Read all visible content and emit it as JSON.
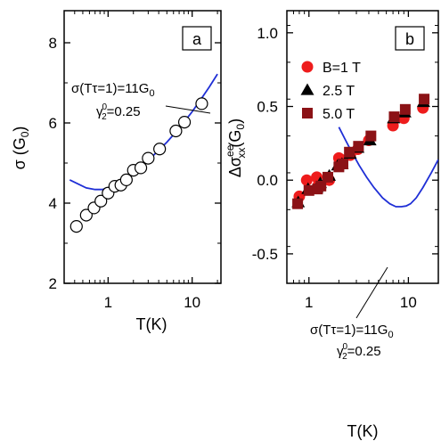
{
  "chart_data": [
    {
      "panel": "a",
      "type": "scatter",
      "xscale": "log",
      "xlim": [
        0.3,
        22
      ],
      "ylim": [
        2,
        8.8
      ],
      "xlabel": "T(K)",
      "ylabel": "σ (G0)",
      "ylabel_parts": {
        "main": "σ (G",
        "sub": "0",
        "close": ")"
      },
      "x_ticks": [
        1,
        10
      ],
      "x_tick_labels": [
        "1",
        "10"
      ],
      "y_ticks": [
        2,
        4,
        6,
        8
      ],
      "y_tick_labels": [
        "2",
        "4",
        "6",
        "8"
      ],
      "panel_label": "a",
      "annotation": {
        "line1": {
          "main": "σ(Tτ=1)=11G",
          "sub": "0"
        },
        "line2": {
          "pre": "γ",
          "sup": "0",
          "sub": "2",
          "post": "=0.25"
        }
      },
      "series": [
        {
          "marker": "open-circle",
          "x": [
            0.42,
            0.55,
            0.68,
            0.82,
            1.0,
            1.2,
            1.42,
            1.65,
            2.0,
            2.45,
            3.0,
            4.1,
            6.4,
            8.1,
            13.0
          ],
          "y": [
            3.42,
            3.7,
            3.88,
            4.05,
            4.25,
            4.42,
            4.45,
            4.58,
            4.82,
            4.88,
            5.12,
            5.35,
            5.8,
            6.02,
            6.48
          ]
        }
      ],
      "curve": {
        "color": "#1f2fd6",
        "x": [
          0.35,
          0.45,
          0.55,
          0.7,
          0.85,
          1.0,
          1.3,
          1.6,
          2.0,
          2.6,
          3.2,
          4.0,
          5.0,
          6.5,
          8.0,
          10.0,
          13.0,
          16.0,
          20.0
        ],
        "y": [
          4.58,
          4.47,
          4.38,
          4.34,
          4.34,
          4.38,
          4.49,
          4.6,
          4.76,
          4.95,
          5.12,
          5.32,
          5.52,
          5.79,
          6.02,
          6.28,
          6.62,
          6.9,
          7.22
        ]
      }
    },
    {
      "panel": "b",
      "type": "scatter",
      "xscale": "log",
      "xlim": [
        0.6,
        20
      ],
      "ylim": [
        -0.7,
        1.15
      ],
      "xlabel": "T(K)",
      "ylabel": "Δσxx ee (G0)",
      "ylabel_parts": {
        "main": "Δσ",
        "sup": "ee",
        "sub": "xx",
        "rest": "(G",
        "sub0": "0",
        "close": ")"
      },
      "x_ticks": [
        1,
        10
      ],
      "x_tick_labels": [
        "1",
        "10"
      ],
      "y_ticks": [
        -0.5,
        0.0,
        0.5,
        1.0
      ],
      "y_tick_labels": [
        "-0.5",
        "0.0",
        "0.5",
        "1.0"
      ],
      "panel_label": "b",
      "annotation": {
        "line1": {
          "main": "σ(Tτ=1)=11G",
          "sub": "0"
        },
        "line2": {
          "pre": "γ",
          "sup": "0",
          "sub": "2",
          "post": "=0.25"
        }
      },
      "series": [
        {
          "name": "B=1 T",
          "marker": "circle",
          "color": "#ee1c1c",
          "x": [
            0.8,
            0.95,
            1.2,
            1.25,
            1.6,
            2.0,
            2.1,
            2.6,
            3.1,
            4.0,
            7.0,
            9.0,
            14.0
          ],
          "y": [
            -0.11,
            0.0,
            0.02,
            -0.03,
            0.0,
            0.15,
            0.14,
            0.17,
            0.21,
            0.27,
            0.37,
            0.42,
            0.49
          ]
        },
        {
          "name": "2.5 T",
          "marker": "triangle",
          "color": "#000000",
          "x": [
            0.78,
            0.98,
            1.2,
            1.3,
            1.6,
            1.95,
            2.15,
            2.6,
            3.1,
            4.1,
            7.1,
            9.2,
            14.2
          ],
          "y": [
            -0.15,
            -0.06,
            -0.05,
            -0.02,
            0.03,
            0.1,
            0.11,
            0.18,
            0.22,
            0.27,
            0.42,
            0.46,
            0.53
          ]
        },
        {
          "name": "5.0 T",
          "marker": "square",
          "color": "#8b1216",
          "x": [
            0.77,
            1.0,
            1.22,
            1.32,
            1.55,
            2.0,
            2.2,
            2.55,
            3.15,
            4.2,
            7.2,
            9.3,
            14.4
          ],
          "y": [
            -0.16,
            -0.07,
            -0.06,
            -0.04,
            0.02,
            0.09,
            0.11,
            0.19,
            0.23,
            0.3,
            0.43,
            0.48,
            0.55
          ]
        }
      ],
      "curve": {
        "color": "#1f2fd6",
        "x": [
          2.0,
          2.3,
          2.7,
          3.2,
          3.8,
          4.5,
          5.5,
          6.5,
          7.5,
          8.5,
          9.5,
          10.5,
          12.0,
          14.0,
          17.0,
          20.0
        ],
        "y": [
          0.36,
          0.28,
          0.19,
          0.1,
          0.02,
          -0.05,
          -0.12,
          -0.16,
          -0.18,
          -0.18,
          -0.175,
          -0.16,
          -0.12,
          -0.05,
          0.05,
          0.14
        ]
      }
    }
  ]
}
